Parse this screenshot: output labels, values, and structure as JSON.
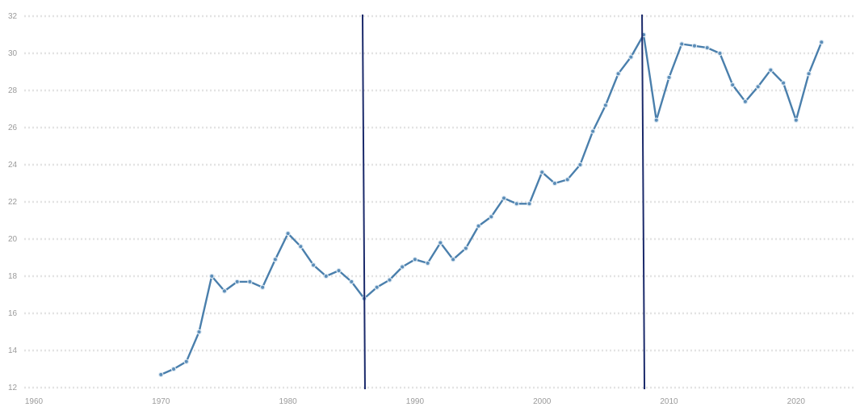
{
  "chart_data": {
    "type": "line",
    "title": "",
    "xlabel": "",
    "ylabel": "",
    "xlim": [
      1960,
      2023
    ],
    "ylim": [
      12,
      32
    ],
    "x_ticks": [
      "1960",
      "1970",
      "1980",
      "1990",
      "2000",
      "2010",
      "2020"
    ],
    "y_ticks": [
      "12",
      "14",
      "16",
      "18",
      "20",
      "22",
      "24",
      "26",
      "28",
      "30",
      "32"
    ],
    "grid": true,
    "legend": "none",
    "series_color": "#4a7fac",
    "marker_line_color": "#1b2a6b",
    "vertical_markers": [
      1986,
      2008
    ],
    "series": [
      {
        "x": [
          1970,
          1971,
          1972,
          1973,
          1974,
          1975,
          1976,
          1977,
          1978,
          1979,
          1980,
          1981,
          1982,
          1983,
          1984,
          1985,
          1986,
          1987,
          1988,
          1989,
          1990,
          1991,
          1992,
          1993,
          1994,
          1995,
          1996,
          1997,
          1998,
          1999,
          2000,
          2001,
          2002,
          2003,
          2004,
          2005,
          2006,
          2007,
          2008,
          2009,
          2010,
          2011,
          2012,
          2013,
          2014,
          2015,
          2016,
          2017,
          2018,
          2019,
          2020,
          2021,
          2022
        ],
        "values": [
          12.7,
          13.0,
          13.4,
          15.0,
          18.0,
          17.2,
          17.7,
          17.7,
          17.4,
          18.9,
          20.3,
          19.6,
          18.6,
          18.0,
          18.3,
          17.7,
          16.8,
          17.4,
          17.8,
          18.5,
          18.9,
          18.7,
          19.8,
          18.9,
          19.5,
          20.7,
          21.2,
          22.2,
          21.9,
          21.9,
          23.6,
          23.0,
          23.2,
          24.0,
          25.8,
          27.2,
          28.9,
          29.8,
          31.0,
          26.4,
          28.7,
          30.5,
          30.4,
          30.3,
          30.0,
          28.3,
          27.4,
          28.2,
          29.1,
          28.4,
          26.4,
          28.9,
          30.6
        ]
      }
    ]
  }
}
